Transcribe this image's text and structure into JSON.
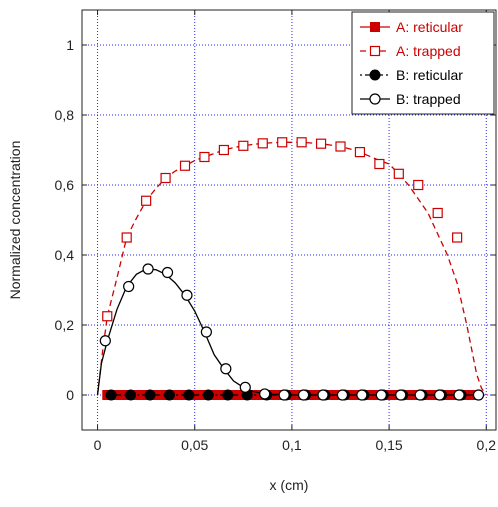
{
  "chart_data": {
    "type": "line",
    "xlabel": "x (cm)",
    "ylabel": "Normalized concentration",
    "xlim": [
      -0.008,
      0.205
    ],
    "ylim": [
      -0.1,
      1.1
    ],
    "grid": true,
    "legend_position": "top-right",
    "x_ticks": [
      {
        "value": 0,
        "label": "0"
      },
      {
        "value": 0.05,
        "label": "0,05"
      },
      {
        "value": 0.1,
        "label": "0,1"
      },
      {
        "value": 0.15,
        "label": "0,15"
      },
      {
        "value": 0.2,
        "label": "0,2"
      }
    ],
    "y_ticks": [
      {
        "value": 0,
        "label": "0"
      },
      {
        "value": 0.2,
        "label": "0,2"
      },
      {
        "value": 0.4,
        "label": "0,4"
      },
      {
        "value": 0.6,
        "label": "0,6"
      },
      {
        "value": 0.8,
        "label": "0,8"
      },
      {
        "value": 1,
        "label": "1"
      }
    ],
    "series": [
      {
        "name": "A: reticular",
        "color": "#cc0000",
        "line_style": "solid",
        "marker": "filled-square",
        "curve_x": [
          0.005,
          0.195
        ],
        "curve_y": [
          0.0,
          0.0
        ],
        "x": [
          0.005,
          0.01,
          0.015,
          0.02,
          0.025,
          0.03,
          0.035,
          0.04,
          0.045,
          0.05,
          0.055,
          0.06,
          0.065,
          0.07,
          0.075,
          0.08,
          0.085,
          0.09,
          0.095,
          0.1,
          0.105,
          0.11,
          0.115,
          0.12,
          0.125,
          0.13,
          0.135,
          0.14,
          0.145,
          0.15,
          0.155,
          0.16,
          0.165,
          0.17,
          0.175,
          0.18,
          0.185,
          0.19,
          0.195
        ],
        "y": [
          0,
          0,
          0,
          0,
          0,
          0,
          0,
          0,
          0,
          0,
          0,
          0,
          0,
          0,
          0,
          0,
          0,
          0,
          0,
          0,
          0,
          0,
          0,
          0,
          0,
          0,
          0,
          0,
          0,
          0,
          0,
          0,
          0,
          0,
          0,
          0,
          0,
          0,
          0
        ]
      },
      {
        "name": "A: trapped",
        "color": "#cc0000",
        "line_style": "dashed",
        "marker": "open-square",
        "curve_x": [
          0.0,
          0.0025,
          0.005,
          0.01,
          0.015,
          0.02,
          0.025,
          0.03,
          0.035,
          0.04,
          0.045,
          0.05,
          0.055,
          0.06,
          0.065,
          0.07,
          0.075,
          0.08,
          0.085,
          0.09,
          0.095,
          0.1,
          0.105,
          0.11,
          0.115,
          0.12,
          0.125,
          0.13,
          0.135,
          0.14,
          0.145,
          0.15,
          0.155,
          0.16,
          0.165,
          0.17,
          0.175,
          0.18,
          0.185,
          0.19,
          0.195,
          0.1975,
          0.2
        ],
        "curve_y": [
          0.0,
          0.12,
          0.225,
          0.335,
          0.45,
          0.505,
          0.555,
          0.59,
          0.62,
          0.64,
          0.655,
          0.67,
          0.68,
          0.69,
          0.7,
          0.707,
          0.712,
          0.716,
          0.719,
          0.721,
          0.722,
          0.722,
          0.722,
          0.72,
          0.718,
          0.714,
          0.71,
          0.703,
          0.694,
          0.682,
          0.67,
          0.66,
          0.632,
          0.6,
          0.56,
          0.52,
          0.46,
          0.4,
          0.32,
          0.2,
          0.06,
          0.02,
          0.0
        ],
        "x": [
          0.005,
          0.015,
          0.025,
          0.035,
          0.045,
          0.055,
          0.065,
          0.075,
          0.085,
          0.095,
          0.105,
          0.115,
          0.125,
          0.135,
          0.145,
          0.155,
          0.165,
          0.175,
          0.185
        ],
        "y": [
          0.225,
          0.45,
          0.555,
          0.62,
          0.655,
          0.68,
          0.7,
          0.712,
          0.719,
          0.722,
          0.722,
          0.718,
          0.71,
          0.694,
          0.66,
          0.632,
          0.6,
          0.52,
          0.45
        ]
      },
      {
        "name": "B: reticular",
        "color": "#000000",
        "line_style": "dashdot",
        "marker": "filled-circle",
        "curve_x": [
          0.007,
          0.195
        ],
        "curve_y": [
          0.0,
          0.0
        ],
        "x": [
          0.007,
          0.017,
          0.027,
          0.037,
          0.047,
          0.057,
          0.067,
          0.077,
          0.087,
          0.097,
          0.107,
          0.117,
          0.127,
          0.137,
          0.147,
          0.157,
          0.167,
          0.177,
          0.187
        ],
        "y": [
          0,
          0,
          0,
          0,
          0,
          0,
          0,
          0,
          0,
          0,
          0,
          0,
          0,
          0,
          0,
          0,
          0,
          0,
          0
        ]
      },
      {
        "name": "B: trapped",
        "color": "#000000",
        "line_style": "solid",
        "marker": "open-circle",
        "curve_x": [
          0.0,
          0.002,
          0.005,
          0.01,
          0.015,
          0.02,
          0.025,
          0.03,
          0.035,
          0.04,
          0.045,
          0.05,
          0.055,
          0.06,
          0.065,
          0.07,
          0.075,
          0.08,
          0.085,
          0.09,
          0.1,
          0.12,
          0.14,
          0.16,
          0.18,
          0.195
        ],
        "curve_y": [
          0.0,
          0.09,
          0.155,
          0.245,
          0.31,
          0.345,
          0.36,
          0.358,
          0.345,
          0.32,
          0.285,
          0.24,
          0.18,
          0.115,
          0.075,
          0.04,
          0.022,
          0.01,
          0.004,
          0.002,
          0.0,
          0.0,
          0.0,
          0.0,
          0.0,
          0.0
        ],
        "x": [
          0.004,
          0.016,
          0.026,
          0.036,
          0.046,
          0.056,
          0.066,
          0.076,
          0.086,
          0.096,
          0.106,
          0.116,
          0.126,
          0.136,
          0.146,
          0.156,
          0.166,
          0.176,
          0.186,
          0.196
        ],
        "y": [
          0.155,
          0.31,
          0.36,
          0.35,
          0.285,
          0.18,
          0.075,
          0.022,
          0.003,
          0.0,
          0.0,
          0.0,
          0.0,
          0.0,
          0.0,
          0.0,
          0.0,
          0.0,
          0.0,
          0.0
        ]
      }
    ]
  }
}
